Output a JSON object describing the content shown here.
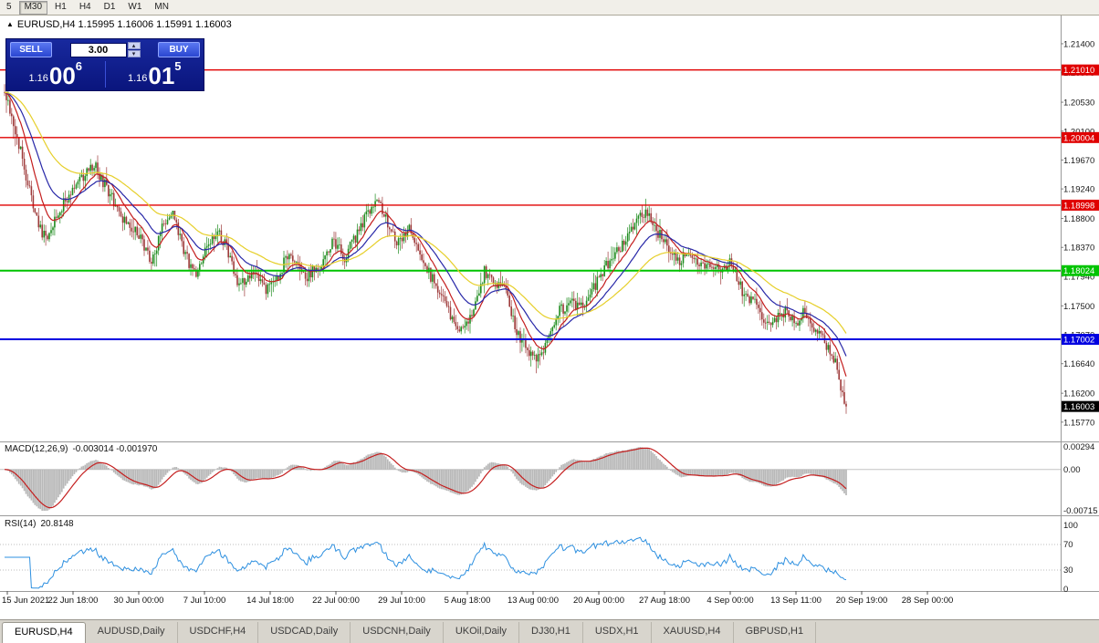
{
  "toolbar": {
    "timeframe_buttons": [
      "5",
      "M30",
      "H1",
      "H4",
      "D1",
      "W1",
      "MN"
    ],
    "selected": "M30"
  },
  "quote_line": {
    "collapse_icon": "▲",
    "text": "EURUSD,H4 1.15995 1.16006 1.15991 1.16003"
  },
  "trade_panel": {
    "sell_label": "SELL",
    "buy_label": "BUY",
    "lot_size": "3.00",
    "up_arrow": "▴",
    "down_arrow": "▾",
    "sell_price": {
      "prefix": "1.16",
      "big": "00",
      "pip": "6"
    },
    "buy_price": {
      "prefix": "1.16",
      "big": "01",
      "pip": "5"
    }
  },
  "price_axis": {
    "labels": [
      "1.21400",
      "1.20970",
      "1.20530",
      "1.20100",
      "1.19670",
      "1.19240",
      "1.18800",
      "1.18370",
      "1.17940",
      "1.17500",
      "1.17070",
      "1.16640",
      "1.16200",
      "1.15770"
    ],
    "values": [
      1.214,
      1.2097,
      1.2053,
      1.201,
      1.1967,
      1.1924,
      1.188,
      1.1837,
      1.1794,
      1.175,
      1.1707,
      1.1664,
      1.162,
      1.1577
    ]
  },
  "hlines": [
    {
      "label": "1.21010",
      "value": 1.2101,
      "color": "#e00000",
      "width": 1.4
    },
    {
      "label": "1.20004",
      "value": 1.20004,
      "color": "#e00000",
      "width": 1.4
    },
    {
      "label": "1.18998",
      "value": 1.18998,
      "color": "#e00000",
      "width": 1.4
    },
    {
      "label": "1.18024",
      "value": 1.18024,
      "color": "#00c400",
      "width": 2
    },
    {
      "label": "1.17002",
      "value": 1.17002,
      "color": "#0000e0",
      "width": 2
    }
  ],
  "current_price": {
    "label": "1.16003",
    "value": 1.16003,
    "color": "#000000"
  },
  "macd_panel": {
    "name": "MACD(12,26,9)",
    "values": "-0.003014 -0.001970",
    "axis_labels": [
      "0.00294",
      "0.00",
      "-0.00715"
    ]
  },
  "rsi_panel": {
    "name": "RSI(14)",
    "value": "20.8148",
    "axis_labels": [
      "100",
      "70",
      "30",
      "0"
    ],
    "levels": [
      70,
      30
    ]
  },
  "time_axis": [
    "15 Jun 2021",
    "22 Jun 18:00",
    "30 Jun 00:00",
    "7 Jul 10:00",
    "14 Jul 18:00",
    "22 Jul 00:00",
    "29 Jul 10:00",
    "5 Aug 18:00",
    "13 Aug 00:00",
    "20 Aug 00:00",
    "27 Aug 18:00",
    "4 Sep 00:00",
    "13 Sep 11:00",
    "20 Sep 19:00",
    "28 Sep 00:00"
  ],
  "tabs": {
    "active": "EURUSD,H4",
    "items": [
      "EURUSD,H4",
      "AUDUSD,Daily",
      "USDCHF,H4",
      "USDCAD,Daily",
      "USDCNH,Daily",
      "UKOil,Daily",
      "DJ30,H1",
      "USDX,H1",
      "XAUUSD,H4",
      "GBPUSD,H1"
    ]
  },
  "chart_data": {
    "type": "candlestick",
    "symbol": "EURUSD",
    "timeframe": "H4",
    "title": "EURUSD,H4",
    "ylim": [
      1.1551,
      1.2182
    ],
    "n_bars": 471,
    "last_bar": {
      "open": 1.15995,
      "high": 1.16006,
      "low": 1.15991,
      "close": 1.16003
    },
    "up_color": "#1e8c1e",
    "down_color": "#9e3a3a",
    "close_waypoints": [
      [
        0,
        1.2068
      ],
      [
        3,
        1.2044
      ],
      [
        6,
        1.201
      ],
      [
        9,
        1.198
      ],
      [
        13,
        1.193
      ],
      [
        17,
        1.189
      ],
      [
        21,
        1.1856
      ],
      [
        24,
        1.185
      ],
      [
        28,
        1.1882
      ],
      [
        40,
        1.1932
      ],
      [
        50,
        1.196
      ],
      [
        56,
        1.193
      ],
      [
        66,
        1.188
      ],
      [
        76,
        1.1852
      ],
      [
        82,
        1.1812
      ],
      [
        88,
        1.1868
      ],
      [
        94,
        1.1886
      ],
      [
        100,
        1.1832
      ],
      [
        106,
        1.1796
      ],
      [
        112,
        1.183
      ],
      [
        118,
        1.1862
      ],
      [
        124,
        1.184
      ],
      [
        130,
        1.1778
      ],
      [
        138,
        1.1802
      ],
      [
        146,
        1.1772
      ],
      [
        152,
        1.1788
      ],
      [
        158,
        1.1826
      ],
      [
        168,
        1.1792
      ],
      [
        176,
        1.1812
      ],
      [
        184,
        1.1846
      ],
      [
        190,
        1.1822
      ],
      [
        196,
        1.1852
      ],
      [
        202,
        1.1886
      ],
      [
        208,
        1.1906
      ],
      [
        214,
        1.1872
      ],
      [
        220,
        1.1842
      ],
      [
        226,
        1.1866
      ],
      [
        232,
        1.1832
      ],
      [
        238,
        1.1794
      ],
      [
        244,
        1.1762
      ],
      [
        250,
        1.1732
      ],
      [
        256,
        1.1712
      ],
      [
        262,
        1.1742
      ],
      [
        268,
        1.1802
      ],
      [
        274,
        1.1782
      ],
      [
        280,
        1.1772
      ],
      [
        286,
        1.1712
      ],
      [
        292,
        1.1682
      ],
      [
        298,
        1.167
      ],
      [
        304,
        1.1702
      ],
      [
        310,
        1.1742
      ],
      [
        316,
        1.1756
      ],
      [
        322,
        1.1748
      ],
      [
        328,
        1.1772
      ],
      [
        334,
        1.1802
      ],
      [
        340,
        1.1822
      ],
      [
        346,
        1.1842
      ],
      [
        352,
        1.1876
      ],
      [
        358,
        1.1888
      ],
      [
        364,
        1.1862
      ],
      [
        370,
        1.1842
      ],
      [
        376,
        1.1816
      ],
      [
        382,
        1.1832
      ],
      [
        388,
        1.1816
      ],
      [
        394,
        1.181
      ],
      [
        400,
        1.1802
      ],
      [
        406,
        1.1816
      ],
      [
        412,
        1.1772
      ],
      [
        418,
        1.1756
      ],
      [
        424,
        1.1732
      ],
      [
        430,
        1.1726
      ],
      [
        436,
        1.1742
      ],
      [
        442,
        1.1722
      ],
      [
        446,
        1.1746
      ],
      [
        450,
        1.1722
      ],
      [
        456,
        1.1702
      ],
      [
        460,
        1.1688
      ],
      [
        464,
        1.1666
      ],
      [
        467,
        1.1628
      ],
      [
        470,
        1.16
      ]
    ],
    "moving_averages": [
      {
        "period": 12,
        "color": "#c41e1e"
      },
      {
        "period": 26,
        "color": "#2828a8"
      },
      {
        "period": 55,
        "color": "#e6cf2a"
      }
    ],
    "indicators": [
      {
        "type": "MACD",
        "fast": 12,
        "slow": 26,
        "signal": 9,
        "current_macd": -0.003014,
        "current_signal": -0.00197,
        "histogram_color": "#b8b8b8",
        "signal_color": "#c41e1e"
      },
      {
        "type": "RSI",
        "period": 14,
        "current": 20.8148,
        "line_color": "#2e90e0"
      }
    ]
  }
}
